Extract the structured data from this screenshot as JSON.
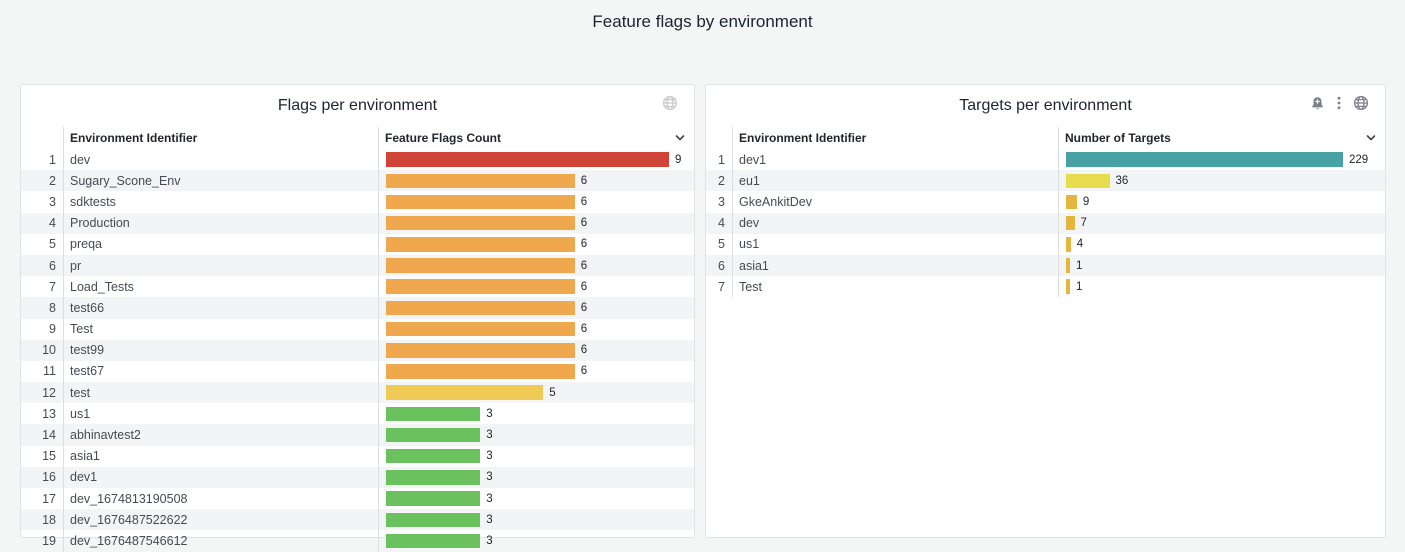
{
  "page": {
    "title": "Feature flags by environment",
    "background_color": "#F4F5F5"
  },
  "colors": {
    "red": "#CE4437",
    "orange": "#F0A84E",
    "yellow": "#EFCB55",
    "green": "#6BC15E",
    "teal": "#47A1A5",
    "bright_yellow": "#E7DC4C",
    "gold": "#E3B63E"
  },
  "panels": [
    {
      "title": "Flags per environment",
      "icons": [
        "globe-icon"
      ],
      "columns": [
        "Environment Identifier",
        "Feature Flags Count"
      ],
      "max_value": 9,
      "rows": [
        {
          "index": 1,
          "name": "dev",
          "value": 9,
          "color": "#CE4437"
        },
        {
          "index": 2,
          "name": "Sugary_Scone_Env",
          "value": 6,
          "color": "#F0A84E"
        },
        {
          "index": 3,
          "name": "sdktests",
          "value": 6,
          "color": "#F0A84E"
        },
        {
          "index": 4,
          "name": "Production",
          "value": 6,
          "color": "#F0A84E"
        },
        {
          "index": 5,
          "name": "preqa",
          "value": 6,
          "color": "#F0A84E"
        },
        {
          "index": 6,
          "name": "pr",
          "value": 6,
          "color": "#F0A84E"
        },
        {
          "index": 7,
          "name": "Load_Tests",
          "value": 6,
          "color": "#F0A84E"
        },
        {
          "index": 8,
          "name": "test66",
          "value": 6,
          "color": "#F0A84E"
        },
        {
          "index": 9,
          "name": "Test",
          "value": 6,
          "color": "#F0A84E"
        },
        {
          "index": 10,
          "name": "test99",
          "value": 6,
          "color": "#F0A84E"
        },
        {
          "index": 11,
          "name": "test67",
          "value": 6,
          "color": "#F0A84E"
        },
        {
          "index": 12,
          "name": "test",
          "value": 5,
          "color": "#EFCB55"
        },
        {
          "index": 13,
          "name": "us1",
          "value": 3,
          "color": "#6BC15E"
        },
        {
          "index": 14,
          "name": "abhinavtest2",
          "value": 3,
          "color": "#6BC15E"
        },
        {
          "index": 15,
          "name": "asia1",
          "value": 3,
          "color": "#6BC15E"
        },
        {
          "index": 16,
          "name": "dev1",
          "value": 3,
          "color": "#6BC15E"
        },
        {
          "index": 17,
          "name": "dev_1674813190508",
          "value": 3,
          "color": "#6BC15E"
        },
        {
          "index": 18,
          "name": "dev_1676487522622",
          "value": 3,
          "color": "#6BC15E"
        },
        {
          "index": 19,
          "name": "dev_1676487546612",
          "value": 3,
          "color": "#6BC15E"
        }
      ]
    },
    {
      "title": "Targets per environment",
      "icons": [
        "alert-bell-icon",
        "kebab-menu-icon",
        "globe-icon"
      ],
      "columns": [
        "Environment Identifier",
        "Number of Targets"
      ],
      "max_value": 229,
      "rows": [
        {
          "index": 1,
          "name": "dev1",
          "value": 229,
          "color": "#47A1A5"
        },
        {
          "index": 2,
          "name": "eu1",
          "value": 36,
          "color": "#E7DC4C"
        },
        {
          "index": 3,
          "name": "GkeAnkitDev",
          "value": 9,
          "color": "#E3B63E"
        },
        {
          "index": 4,
          "name": "dev",
          "value": 7,
          "color": "#E3B63E"
        },
        {
          "index": 5,
          "name": "us1",
          "value": 4,
          "color": "#E3B63E"
        },
        {
          "index": 6,
          "name": "asia1",
          "value": 1,
          "color": "#E3B63E"
        },
        {
          "index": 7,
          "name": "Test",
          "value": 1,
          "color": "#E3B63E"
        }
      ]
    }
  ],
  "chart_data": [
    {
      "type": "bar",
      "orientation": "horizontal",
      "title": "Flags per environment",
      "categories": [
        "dev",
        "Sugary_Scone_Env",
        "sdktests",
        "Production",
        "preqa",
        "pr",
        "Load_Tests",
        "test66",
        "Test",
        "test99",
        "test67",
        "test",
        "us1",
        "abhinavtest2",
        "asia1",
        "dev1",
        "dev_1674813190508",
        "dev_1676487522622",
        "dev_1676487546612"
      ],
      "values": [
        9,
        6,
        6,
        6,
        6,
        6,
        6,
        6,
        6,
        6,
        6,
        5,
        3,
        3,
        3,
        3,
        3,
        3,
        3
      ],
      "xlabel": "Feature Flags Count",
      "ylabel": "Environment Identifier",
      "xlim": [
        0,
        9
      ],
      "grid": false,
      "legend": false
    },
    {
      "type": "bar",
      "orientation": "horizontal",
      "title": "Targets per environment",
      "categories": [
        "dev1",
        "eu1",
        "GkeAnkitDev",
        "dev",
        "us1",
        "asia1",
        "Test"
      ],
      "values": [
        229,
        36,
        9,
        7,
        4,
        1,
        1
      ],
      "xlabel": "Number of Targets",
      "ylabel": "Environment Identifier",
      "xlim": [
        0,
        229
      ],
      "grid": false,
      "legend": false
    }
  ]
}
